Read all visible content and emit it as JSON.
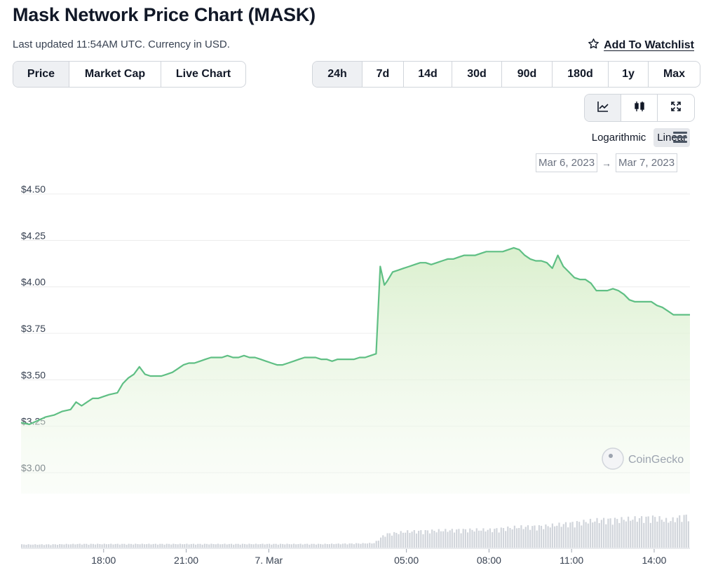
{
  "header": {
    "title": "Mask Network Price Chart (MASK)",
    "subtitle": "Last updated 11:54AM UTC. Currency in USD.",
    "watchlist_label": "Add To Watchlist"
  },
  "view_tabs": [
    {
      "label": "Price",
      "active": true
    },
    {
      "label": "Market Cap",
      "active": false
    },
    {
      "label": "Live Chart",
      "active": false
    }
  ],
  "range_tabs": [
    {
      "label": "24h",
      "active": true
    },
    {
      "label": "7d",
      "active": false
    },
    {
      "label": "14d",
      "active": false
    },
    {
      "label": "30d",
      "active": false
    },
    {
      "label": "90d",
      "active": false
    },
    {
      "label": "180d",
      "active": false
    },
    {
      "label": "1y",
      "active": false
    },
    {
      "label": "Max",
      "active": false
    }
  ],
  "chart_type_buttons": [
    {
      "icon": "line-chart-icon",
      "active": true
    },
    {
      "icon": "candlestick-icon",
      "active": false
    },
    {
      "icon": "expand-icon",
      "active": false
    }
  ],
  "scale": {
    "logarithmic_label": "Logarithmic",
    "linear_label": "Linear",
    "selected": "Linear"
  },
  "date_range": {
    "from": "Mar 6, 2023",
    "to": "Mar 7, 2023"
  },
  "watermark": "CoinGecko",
  "colors": {
    "line": "#5fbf84",
    "fill": "#e6f4de",
    "volume": "#d1d5db",
    "grid": "#ececec"
  },
  "chart_data": {
    "type": "area",
    "title": "",
    "y_unit": "USD",
    "ylim": [
      3.0,
      4.5
    ],
    "y_ticks": [
      "$3.00",
      "$3.25",
      "$3.50",
      "$3.75",
      "$4.00",
      "$4.25",
      "$4.50"
    ],
    "y_tick_values": [
      3.0,
      3.25,
      3.5,
      3.75,
      4.0,
      4.25,
      4.5
    ],
    "x_range_hours": [
      15.0,
      39.3
    ],
    "x_ticks": [
      {
        "label": "18:00",
        "hour": 18
      },
      {
        "label": "21:00",
        "hour": 21
      },
      {
        "label": "7. Mar",
        "hour": 24
      },
      {
        "label": "05:00",
        "hour": 29
      },
      {
        "label": "08:00",
        "hour": 32
      },
      {
        "label": "11:00",
        "hour": 35
      },
      {
        "label": "14:00",
        "hour": 38
      }
    ],
    "grid": true,
    "series": [
      {
        "points": [
          [
            15.0,
            3.27
          ],
          [
            15.3,
            3.26
          ],
          [
            15.6,
            3.28
          ],
          [
            15.9,
            3.3
          ],
          [
            16.2,
            3.31
          ],
          [
            16.5,
            3.33
          ],
          [
            16.8,
            3.34
          ],
          [
            17.0,
            3.38
          ],
          [
            17.2,
            3.36
          ],
          [
            17.4,
            3.38
          ],
          [
            17.6,
            3.4
          ],
          [
            17.8,
            3.4
          ],
          [
            18.0,
            3.41
          ],
          [
            18.2,
            3.42
          ],
          [
            18.5,
            3.43
          ],
          [
            18.7,
            3.48
          ],
          [
            18.9,
            3.51
          ],
          [
            19.1,
            3.53
          ],
          [
            19.3,
            3.57
          ],
          [
            19.5,
            3.53
          ],
          [
            19.7,
            3.52
          ],
          [
            19.9,
            3.52
          ],
          [
            20.1,
            3.52
          ],
          [
            20.3,
            3.53
          ],
          [
            20.5,
            3.54
          ],
          [
            20.7,
            3.56
          ],
          [
            20.9,
            3.58
          ],
          [
            21.1,
            3.59
          ],
          [
            21.3,
            3.59
          ],
          [
            21.5,
            3.6
          ],
          [
            21.7,
            3.61
          ],
          [
            21.9,
            3.62
          ],
          [
            22.1,
            3.62
          ],
          [
            22.3,
            3.62
          ],
          [
            22.5,
            3.63
          ],
          [
            22.7,
            3.62
          ],
          [
            22.9,
            3.62
          ],
          [
            23.1,
            3.63
          ],
          [
            23.3,
            3.62
          ],
          [
            23.5,
            3.62
          ],
          [
            23.7,
            3.61
          ],
          [
            23.9,
            3.6
          ],
          [
            24.1,
            3.59
          ],
          [
            24.3,
            3.58
          ],
          [
            24.5,
            3.58
          ],
          [
            24.7,
            3.59
          ],
          [
            24.9,
            3.6
          ],
          [
            25.1,
            3.61
          ],
          [
            25.3,
            3.62
          ],
          [
            25.5,
            3.62
          ],
          [
            25.7,
            3.62
          ],
          [
            25.9,
            3.61
          ],
          [
            26.1,
            3.61
          ],
          [
            26.3,
            3.6
          ],
          [
            26.5,
            3.61
          ],
          [
            26.7,
            3.61
          ],
          [
            26.9,
            3.61
          ],
          [
            27.1,
            3.61
          ],
          [
            27.3,
            3.62
          ],
          [
            27.5,
            3.62
          ],
          [
            27.7,
            3.63
          ],
          [
            27.9,
            3.64
          ],
          [
            28.05,
            4.11
          ],
          [
            28.2,
            4.01
          ],
          [
            28.3,
            4.03
          ],
          [
            28.5,
            4.08
          ],
          [
            28.7,
            4.09
          ],
          [
            28.9,
            4.1
          ],
          [
            29.1,
            4.11
          ],
          [
            29.3,
            4.12
          ],
          [
            29.5,
            4.13
          ],
          [
            29.7,
            4.13
          ],
          [
            29.9,
            4.12
          ],
          [
            30.1,
            4.13
          ],
          [
            30.3,
            4.14
          ],
          [
            30.5,
            4.15
          ],
          [
            30.7,
            4.15
          ],
          [
            30.9,
            4.16
          ],
          [
            31.1,
            4.17
          ],
          [
            31.3,
            4.17
          ],
          [
            31.5,
            4.17
          ],
          [
            31.7,
            4.18
          ],
          [
            31.9,
            4.19
          ],
          [
            32.1,
            4.19
          ],
          [
            32.3,
            4.19
          ],
          [
            32.5,
            4.19
          ],
          [
            32.7,
            4.2
          ],
          [
            32.9,
            4.21
          ],
          [
            33.1,
            4.2
          ],
          [
            33.3,
            4.17
          ],
          [
            33.5,
            4.15
          ],
          [
            33.7,
            4.14
          ],
          [
            33.9,
            4.14
          ],
          [
            34.1,
            4.13
          ],
          [
            34.3,
            4.1
          ],
          [
            34.5,
            4.17
          ],
          [
            34.7,
            4.11
          ],
          [
            34.9,
            4.08
          ],
          [
            35.1,
            4.05
          ],
          [
            35.3,
            4.04
          ],
          [
            35.5,
            4.04
          ],
          [
            35.7,
            4.02
          ],
          [
            35.9,
            3.98
          ],
          [
            36.1,
            3.98
          ],
          [
            36.3,
            3.98
          ],
          [
            36.5,
            3.99
          ],
          [
            36.7,
            3.98
          ],
          [
            36.9,
            3.96
          ],
          [
            37.1,
            3.93
          ],
          [
            37.3,
            3.92
          ],
          [
            37.5,
            3.92
          ],
          [
            37.7,
            3.92
          ],
          [
            37.9,
            3.92
          ],
          [
            38.1,
            3.9
          ],
          [
            38.3,
            3.89
          ],
          [
            38.5,
            3.87
          ],
          [
            38.7,
            3.85
          ],
          [
            38.9,
            3.85
          ],
          [
            39.1,
            3.85
          ],
          [
            39.3,
            3.85
          ]
        ]
      }
    ],
    "volume_ylim": [
      0,
      1
    ],
    "volume": [
      [
        15.0,
        0.07
      ],
      [
        16.0,
        0.07
      ],
      [
        17.0,
        0.08
      ],
      [
        18.0,
        0.08
      ],
      [
        19.0,
        0.08
      ],
      [
        20.0,
        0.08
      ],
      [
        21.0,
        0.08
      ],
      [
        22.0,
        0.08
      ],
      [
        23.0,
        0.08
      ],
      [
        24.0,
        0.08
      ],
      [
        25.0,
        0.08
      ],
      [
        26.0,
        0.08
      ],
      [
        27.0,
        0.09
      ],
      [
        27.8,
        0.1
      ],
      [
        28.2,
        0.3
      ],
      [
        29.0,
        0.36
      ],
      [
        30.0,
        0.38
      ],
      [
        31.0,
        0.4
      ],
      [
        32.0,
        0.4
      ],
      [
        33.0,
        0.46
      ],
      [
        34.0,
        0.48
      ],
      [
        35.0,
        0.55
      ],
      [
        36.0,
        0.62
      ],
      [
        37.0,
        0.64
      ],
      [
        38.0,
        0.68
      ],
      [
        38.5,
        0.6
      ],
      [
        39.0,
        0.7
      ],
      [
        39.3,
        0.72
      ]
    ]
  }
}
